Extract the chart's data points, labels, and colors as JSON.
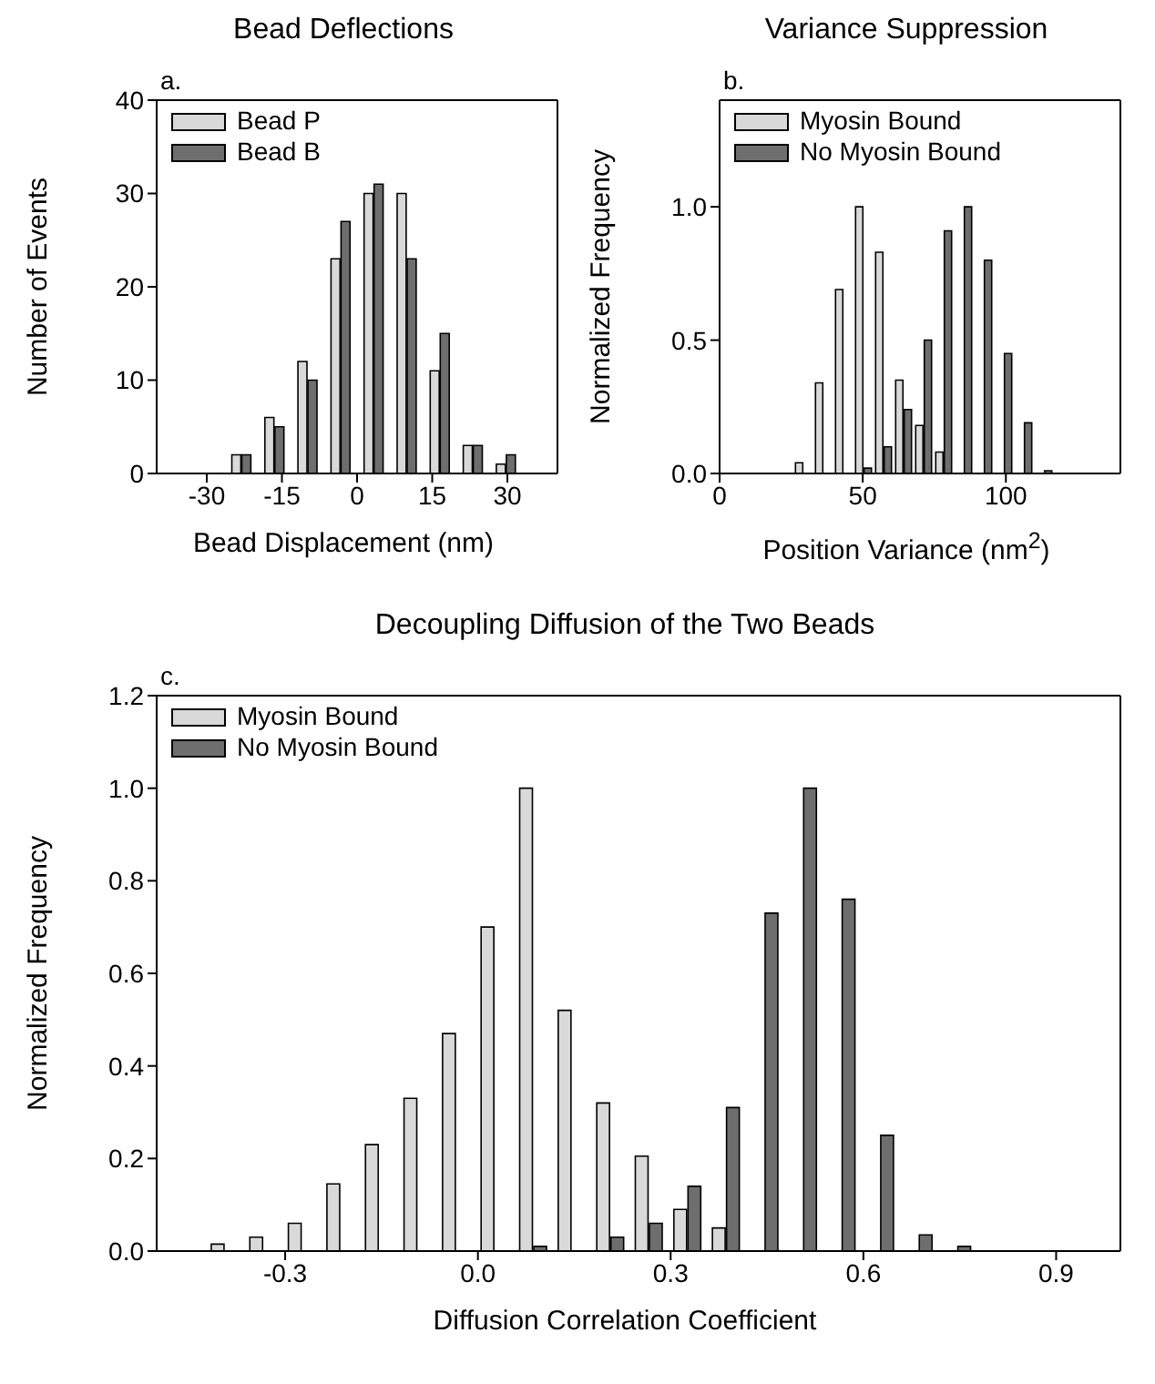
{
  "chart_data": [
    {
      "type": "bar",
      "title": "Bead Deflections",
      "xlabel": "Bead Displacement (nm)",
      "ylabel": "Number of Events",
      "annotations": [
        "a."
      ],
      "legend": "top left",
      "xlim": [
        -40,
        40
      ],
      "xticks": [
        -30,
        -15,
        0,
        15,
        30
      ],
      "ylim": [
        0,
        40
      ],
      "yticks": [
        0,
        10,
        20,
        30,
        40
      ],
      "series": [
        {
          "name": "Bead P",
          "color": "#d9d9d9",
          "x": [
            -24,
            -17.4,
            -10.8,
            -4.2,
            2.4,
            9,
            15.6,
            22.2,
            28.8
          ],
          "values": [
            2,
            6,
            12,
            23,
            30,
            30,
            11,
            3,
            1
          ]
        },
        {
          "name": "Bead B",
          "color": "#6e6e6e",
          "x": [
            -22,
            -15.4,
            -8.8,
            -2.2,
            4.4,
            11,
            17.6,
            24.2,
            30.8
          ],
          "values": [
            2,
            5,
            10,
            27,
            31,
            23,
            15,
            3,
            2
          ]
        }
      ]
    },
    {
      "type": "bar",
      "title": "Variance Suppression",
      "xlabel": "Position Variance (nm$^{2}$)",
      "ylabel": "Normalized Frequency",
      "annotations": [
        "b."
      ],
      "legend": "top left",
      "xlim": [
        0,
        140
      ],
      "xticks": [
        0,
        50,
        100
      ],
      "ylim": [
        0,
        1.4
      ],
      "yticks": [
        {
          "value": 0,
          "label": "0.0"
        },
        {
          "value": 0.5,
          "label": "0.5"
        },
        {
          "value": 1,
          "label": "1.0"
        }
      ],
      "series": [
        {
          "name": "Myosin Bound",
          "color": "#d9d9d9",
          "x": [
            28,
            35,
            42,
            49,
            56,
            63,
            70,
            77
          ],
          "values": [
            0.04,
            0.34,
            0.69,
            1.0,
            0.83,
            0.35,
            0.18,
            0.08
          ]
        },
        {
          "name": "No Myosin Bound",
          "color": "#6e6e6e",
          "x": [
            52,
            59,
            66,
            73,
            80,
            87,
            94,
            101,
            108,
            115
          ],
          "values": [
            0.02,
            0.1,
            0.24,
            0.5,
            0.91,
            1.0,
            0.8,
            0.45,
            0.19,
            0.01
          ]
        }
      ]
    },
    {
      "type": "bar",
      "title": "Decoupling Diffusion of the Two Beads",
      "xlabel": "Diffusion Correlation Coefficient",
      "ylabel": "Normalized Frequency",
      "annotations": [
        "c."
      ],
      "legend": "top left",
      "xlim": [
        -0.5,
        1.0
      ],
      "xticks": [
        -0.3,
        {
          "value": 0,
          "label": "0.0"
        },
        0.3,
        0.6,
        0.9
      ],
      "ylim": [
        0,
        1.2
      ],
      "yticks": [
        {
          "value": 0,
          "label": "0.0"
        },
        {
          "value": 0.2,
          "label": "0.2"
        },
        {
          "value": 0.4,
          "label": "0.4"
        },
        {
          "value": 0.6,
          "label": "0.6"
        },
        {
          "value": 0.8,
          "label": "0.8"
        },
        {
          "value": 1,
          "label": "1.0"
        },
        {
          "value": 1.2,
          "label": "1.2"
        }
      ],
      "series": [
        {
          "name": "Myosin Bound",
          "color": "#d9d9d9",
          "x": [
            -0.404,
            -0.344,
            -0.284,
            -0.224,
            -0.164,
            -0.104,
            -0.044,
            0.016,
            0.076,
            0.136,
            0.196,
            0.256,
            0.316,
            0.376
          ],
          "values": [
            0.015,
            0.03,
            0.06,
            0.145,
            0.23,
            0.33,
            0.47,
            0.7,
            1.0,
            0.52,
            0.32,
            0.205,
            0.09,
            0.05
          ]
        },
        {
          "name": "No Myosin Bound",
          "color": "#6e6e6e",
          "x": [
            0.098,
            0.218,
            0.278,
            0.338,
            0.398,
            0.458,
            0.518,
            0.578,
            0.638,
            0.698,
            0.758
          ],
          "values": [
            0.01,
            0.03,
            0.06,
            0.14,
            0.31,
            0.73,
            1.0,
            0.76,
            0.25,
            0.035,
            0.01
          ]
        }
      ]
    }
  ]
}
